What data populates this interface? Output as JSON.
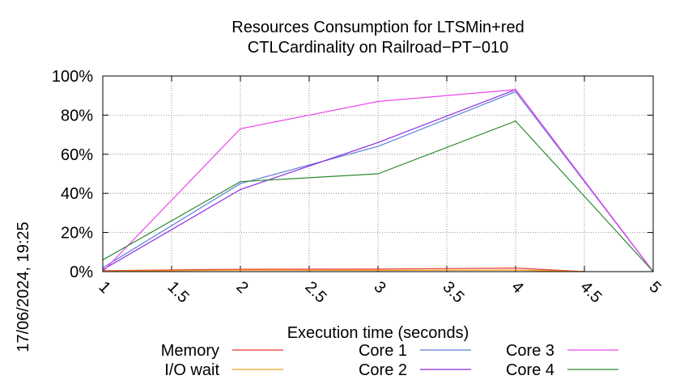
{
  "chart_data": {
    "type": "line",
    "title": [
      "Resources Consumption for LTSMin+red",
      "CTLCardinality on Railroad−PT−010"
    ],
    "xlabel": "Execution time (seconds)",
    "ylabel": "",
    "timestamp": "17/06/2024, 19:25",
    "xlim": [
      1,
      5
    ],
    "ylim": [
      0,
      100
    ],
    "x_ticks": [
      "1",
      "1.5",
      "2",
      "2.5",
      "3",
      "3.5",
      "4",
      "4.5",
      "5"
    ],
    "y_ticks": [
      "0%",
      "20%",
      "40%",
      "60%",
      "80%",
      "100%"
    ],
    "grid": true,
    "legend_position": "bottom",
    "series": [
      {
        "name": "Memory",
        "color": "#e8352a",
        "x": [
          1,
          2,
          3,
          4,
          4.5
        ],
        "values": [
          0.5,
          1.2,
          1.3,
          1.8,
          0
        ]
      },
      {
        "name": "I/O wait",
        "color": "#f0a020",
        "x": [
          1,
          2,
          3,
          4,
          4.5
        ],
        "values": [
          0.2,
          0.8,
          0.6,
          0.8,
          0
        ]
      },
      {
        "name": "Core 1",
        "color": "#5b7fd6",
        "x": [
          1,
          2,
          3,
          4,
          5
        ],
        "values": [
          2,
          45,
          64,
          92,
          0
        ]
      },
      {
        "name": "Core 2",
        "color": "#8a2be2",
        "x": [
          1,
          2,
          3,
          4,
          5
        ],
        "values": [
          1,
          42,
          66,
          93,
          0
        ]
      },
      {
        "name": "Core 3",
        "color": "#ee44ee",
        "x": [
          1,
          2,
          3,
          4,
          5
        ],
        "values": [
          0,
          73,
          87,
          93,
          0
        ]
      },
      {
        "name": "Core 4",
        "color": "#2e8b2e",
        "x": [
          1,
          2,
          3,
          4,
          5
        ],
        "values": [
          6,
          46,
          50,
          77,
          0
        ]
      }
    ]
  }
}
